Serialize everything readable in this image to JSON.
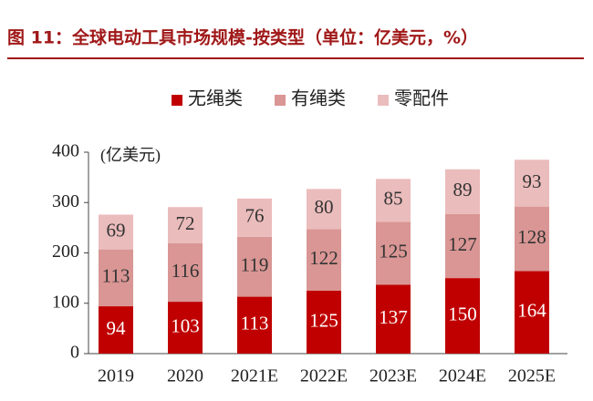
{
  "chart_data": {
    "type": "stacked_bar",
    "title": "图 11：全球电动工具市场规模-按类型（单位：亿美元，%）",
    "y_label": "(亿美元)",
    "categories": [
      "2019",
      "2020",
      "2021E",
      "2022E",
      "2023E",
      "2024E",
      "2025E"
    ],
    "series": [
      {
        "name": "无绳类",
        "color": "#c00000",
        "label_color": "#ffffff",
        "values": [
          94,
          103,
          113,
          125,
          137,
          150,
          164
        ]
      },
      {
        "name": "有绳类",
        "color": "#d99694",
        "label_color": "#333333",
        "values": [
          113,
          116,
          119,
          122,
          125,
          127,
          128
        ]
      },
      {
        "name": "零配件",
        "color": "#ebbcbc",
        "label_color": "#333333",
        "values": [
          69,
          72,
          76,
          80,
          85,
          89,
          93
        ]
      }
    ],
    "ylim": [
      0,
      400
    ],
    "yticks": [
      0,
      100,
      200,
      300,
      400
    ],
    "grid": false,
    "legend": "top"
  }
}
